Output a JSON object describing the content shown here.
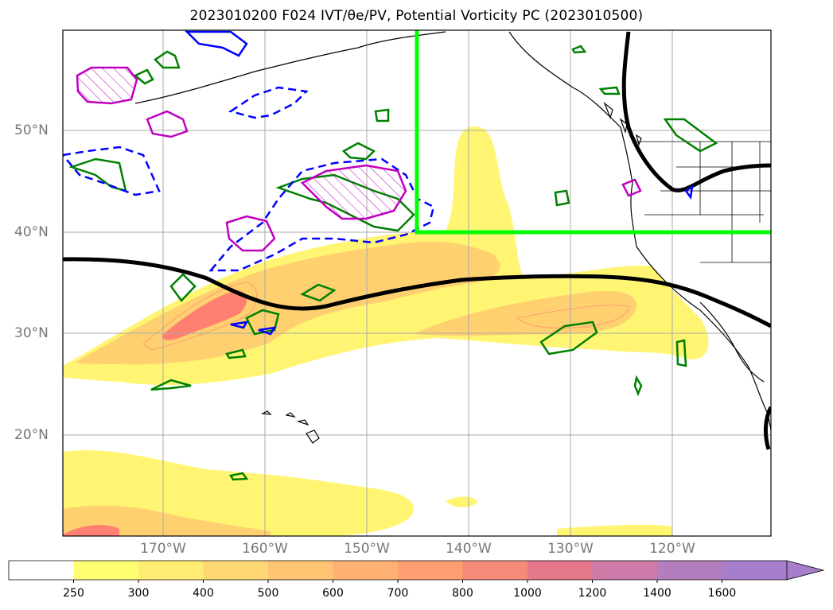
{
  "title": "2023010200 F024 IVT/θe/PV, Potential Vorticity PC (2023010500)",
  "map": {
    "lat_labels": [
      "50°N",
      "40°N",
      "30°N",
      "20°N"
    ],
    "lon_labels": [
      "170°W",
      "160°W",
      "150°W",
      "140°W",
      "130°W",
      "120°W"
    ],
    "extent": {
      "lon_min": -180,
      "lon_max": -110.3,
      "lat_min": 10,
      "lat_max": 59.6
    },
    "box_corner": {
      "lon": -145,
      "lat": 40
    },
    "box_color": "#00ff00"
  },
  "colorbar": {
    "levels": [
      "250",
      "300",
      "400",
      "500",
      "600",
      "700",
      "800",
      "1000",
      "1200",
      "1400",
      "1600"
    ],
    "colors": [
      "#ffffff",
      "#ffff73",
      "#ffec73",
      "#ffd873",
      "#ffc573",
      "#ffb173",
      "#ff9d73",
      "#f58a7a",
      "#e4788a",
      "#cc7ba8",
      "#b47dbe",
      "#a77ecb"
    ],
    "extend": "max"
  },
  "legend_colors": {
    "ivt_low": "#fff573",
    "ivt_mid": "#ffd070",
    "ivt_high": "#ff8070",
    "pv_green": "#008000",
    "pv_blue": "#0000ff",
    "pv_magenta": "#c000c0",
    "jet_line": "#000000"
  }
}
